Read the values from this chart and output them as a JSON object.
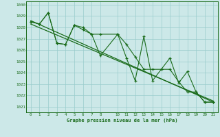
{
  "title": "Graphe pression niveau de la mer (hPa)",
  "bg_color": "#cce8e8",
  "grid_color": "#99cccc",
  "line_color": "#1a6b1a",
  "xlim": [
    -0.5,
    21.5
  ],
  "ylim": [
    1020.5,
    1030.3
  ],
  "xticks": [
    0,
    1,
    2,
    3,
    4,
    5,
    6,
    7,
    8,
    10,
    11,
    12,
    13,
    14,
    15,
    16,
    17,
    18,
    19,
    20,
    21
  ],
  "yticks": [
    1021,
    1022,
    1023,
    1024,
    1025,
    1026,
    1027,
    1028,
    1029,
    1030
  ],
  "x_data": [
    0,
    1,
    2,
    3,
    4,
    5,
    6,
    7,
    8,
    10,
    11,
    12,
    13,
    14,
    15,
    16,
    17,
    18,
    19,
    20,
    21
  ],
  "series1": [
    1028.5,
    1028.3,
    1029.3,
    1026.6,
    1026.5,
    1028.2,
    1028.0,
    1027.4,
    1025.5,
    1027.4,
    1025.3,
    1023.3,
    1027.2,
    1023.3,
    1024.3,
    1025.3,
    1023.1,
    1024.1,
    1022.3,
    1021.4,
    1021.4
  ],
  "series2": [
    1028.5,
    1028.3,
    1029.3,
    1026.6,
    1026.5,
    1028.2,
    1027.8,
    1027.4,
    1027.4,
    1027.4,
    1026.5,
    1025.4,
    1024.3,
    1024.3,
    1024.3,
    1024.3,
    1023.2,
    1022.3,
    1022.3,
    1021.4,
    1021.4
  ],
  "trend1_x": [
    0,
    21
  ],
  "trend1_y": [
    1028.6,
    1021.4
  ],
  "trend2_x": [
    0,
    21
  ],
  "trend2_y": [
    1028.3,
    1021.5
  ]
}
